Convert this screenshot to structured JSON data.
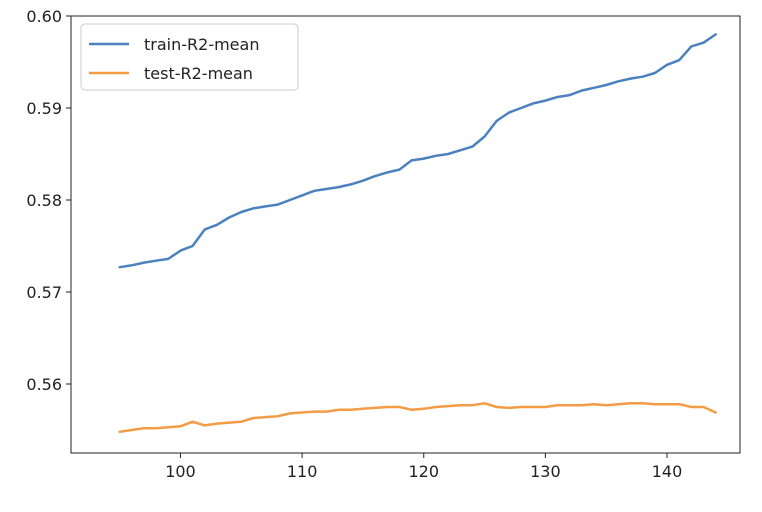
{
  "chart_data": {
    "type": "line",
    "title": "",
    "xlabel": "",
    "ylabel": "",
    "xlim": [
      91,
      146
    ],
    "ylim": [
      0.5525,
      0.6
    ],
    "xticks": [
      100,
      110,
      120,
      130,
      140
    ],
    "xtick_labels": [
      "100",
      "110",
      "120",
      "130",
      "140"
    ],
    "yticks": [
      0.56,
      0.57,
      0.58,
      0.59,
      0.6
    ],
    "ytick_labels": [
      "0.56",
      "0.57",
      "0.58",
      "0.59",
      "0.60"
    ],
    "grid": false,
    "legend_position": "top-left",
    "x": [
      95,
      96,
      97,
      98,
      99,
      100,
      101,
      102,
      103,
      104,
      105,
      106,
      107,
      108,
      109,
      110,
      111,
      112,
      113,
      114,
      115,
      116,
      117,
      118,
      119,
      120,
      121,
      122,
      123,
      124,
      125,
      126,
      127,
      128,
      129,
      130,
      131,
      132,
      133,
      134,
      135,
      136,
      137,
      138,
      139,
      140,
      141,
      142,
      143,
      144
    ],
    "series": [
      {
        "name": "train-R2-mean",
        "color": "#4c81bf",
        "values": [
          0.5727,
          0.5729,
          0.5732,
          0.5734,
          0.5736,
          0.5745,
          0.575,
          0.5768,
          0.5773,
          0.5781,
          0.5787,
          0.5791,
          0.5793,
          0.5795,
          0.58,
          0.5805,
          0.581,
          0.5812,
          0.5814,
          0.5817,
          0.5821,
          0.5826,
          0.583,
          0.5833,
          0.5843,
          0.5845,
          0.5848,
          0.585,
          0.5854,
          0.5858,
          0.5869,
          0.5886,
          0.5895,
          0.59,
          0.5905,
          0.5908,
          0.5912,
          0.5914,
          0.5919,
          0.5922,
          0.5925,
          0.5929,
          0.5932,
          0.5934,
          0.5938,
          0.5947,
          0.5952,
          0.5967,
          0.5971,
          0.598
        ]
      },
      {
        "name": "test-R2-mean",
        "color": "#f39c45",
        "values": [
          0.5548,
          0.555,
          0.5552,
          0.5552,
          0.5553,
          0.5554,
          0.5559,
          0.5555,
          0.5557,
          0.5558,
          0.5559,
          0.5563,
          0.5564,
          0.5565,
          0.5568,
          0.5569,
          0.557,
          0.557,
          0.5572,
          0.5572,
          0.5573,
          0.5574,
          0.5575,
          0.5575,
          0.5572,
          0.5573,
          0.5575,
          0.5576,
          0.5577,
          0.5577,
          0.5579,
          0.5575,
          0.5574,
          0.5575,
          0.5575,
          0.5575,
          0.5577,
          0.5577,
          0.5577,
          0.5578,
          0.5577,
          0.5578,
          0.5579,
          0.5579,
          0.5578,
          0.5578,
          0.5578,
          0.5575,
          0.5575,
          0.5569
        ]
      }
    ]
  }
}
